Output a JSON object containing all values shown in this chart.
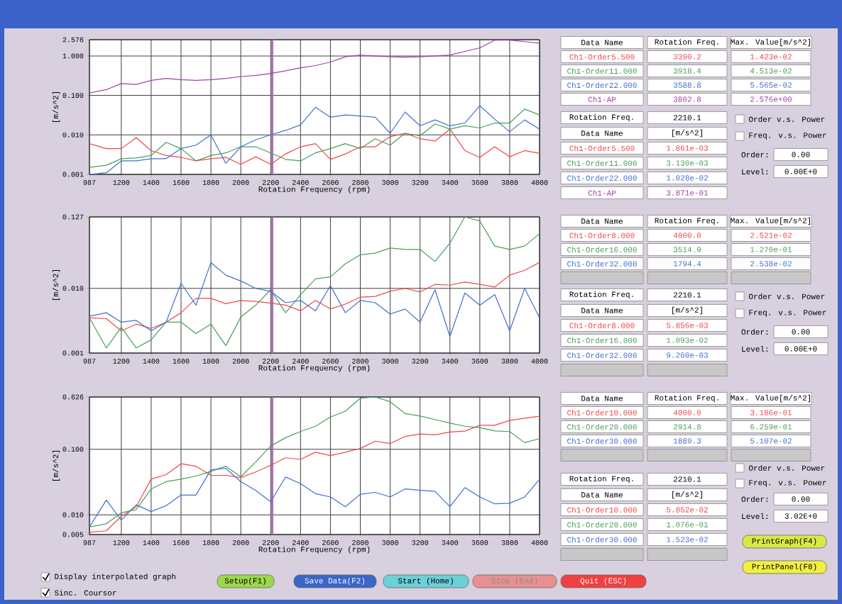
{
  "chart_data": [
    {
      "type": "line",
      "xlabel": "Rotation Frequency (rpm)",
      "ylabel": "[m/s^2]",
      "log": "y",
      "grid": true,
      "marker": "none",
      "x": [
        987,
        1100,
        1200,
        1300,
        1400,
        1500,
        1600,
        1700,
        1800,
        1900,
        2000,
        2100,
        2200,
        2300,
        2400,
        2500,
        2600,
        2700,
        2800,
        2900,
        3000,
        3100,
        3200,
        3300,
        3400,
        3500,
        3600,
        3700,
        3800,
        3900,
        4000
      ],
      "xlim": [
        987,
        4000
      ],
      "xticks": [
        987,
        1200,
        1400,
        1600,
        1800,
        2000,
        2200,
        2400,
        2600,
        2800,
        3000,
        3200,
        3400,
        3600,
        3800,
        4000
      ],
      "ylim": [
        0.001,
        2.576
      ],
      "yticks": [
        {
          "value": 0.001,
          "label": "0.001"
        },
        {
          "value": 0.01,
          "label": "0.010"
        },
        {
          "value": 0.1,
          "label": "0.100"
        },
        {
          "value": 1,
          "label": "1.000"
        },
        {
          "value": 2.576,
          "label": "2.576"
        }
      ],
      "ref_lines": [
        {
          "axis": "x",
          "value": 2210.1,
          "color": "#b070b8"
        }
      ],
      "series": [
        {
          "name": "Ch1-Order5.500",
          "color": "#f04848",
          "values": [
            0.006,
            0.0045,
            0.0045,
            0.0085,
            0.004,
            0.003,
            0.0027,
            0.0022,
            0.0025,
            0.0027,
            0.0018,
            0.0028,
            0.0018,
            0.0033,
            0.005,
            0.006,
            0.0024,
            0.0033,
            0.005,
            0.005,
            0.009,
            0.011,
            0.008,
            0.007,
            0.014,
            0.004,
            0.0027,
            0.005,
            0.0028,
            0.004,
            0.0034
          ]
        },
        {
          "name": "Ch1-Order11.000",
          "color": "#48a058",
          "values": [
            0.0015,
            0.0017,
            0.0025,
            0.0026,
            0.003,
            0.0065,
            0.0045,
            0.0022,
            0.003,
            0.0035,
            0.005,
            0.005,
            0.0035,
            0.0024,
            0.0022,
            0.0035,
            0.0045,
            0.006,
            0.0045,
            0.008,
            0.0055,
            0.011,
            0.0095,
            0.019,
            0.014,
            0.017,
            0.015,
            0.02,
            0.02,
            0.045,
            0.032
          ]
        },
        {
          "name": "Ch1-Order22.000",
          "color": "#4070d0",
          "values": [
            0.001,
            0.0011,
            0.0022,
            0.0022,
            0.0025,
            0.0025,
            0.0045,
            0.0055,
            0.01,
            0.0019,
            0.005,
            0.0075,
            0.01,
            0.013,
            0.018,
            0.05,
            0.028,
            0.032,
            0.03,
            0.028,
            0.011,
            0.038,
            0.017,
            0.024,
            0.017,
            0.02,
            0.055,
            0.025,
            0.012,
            0.024,
            0.014
          ]
        },
        {
          "name": "Ch1-AP",
          "color": "#a040a8",
          "values": [
            0.115,
            0.14,
            0.2,
            0.19,
            0.24,
            0.27,
            0.25,
            0.24,
            0.25,
            0.27,
            0.3,
            0.32,
            0.36,
            0.42,
            0.5,
            0.57,
            0.7,
            0.95,
            1.05,
            1.0,
            0.95,
            0.93,
            0.95,
            1.0,
            1.05,
            1.3,
            1.6,
            2.5,
            2.5,
            2.3,
            2.1
          ]
        }
      ]
    },
    {
      "type": "line",
      "xlabel": "Rotation Frequency (rpm)",
      "ylabel": "[m/s^2]",
      "log": "y",
      "grid": true,
      "marker": "none",
      "x": [
        987,
        1100,
        1200,
        1300,
        1400,
        1500,
        1600,
        1700,
        1800,
        1900,
        2000,
        2100,
        2200,
        2300,
        2400,
        2500,
        2600,
        2700,
        2800,
        2900,
        3000,
        3100,
        3200,
        3300,
        3400,
        3500,
        3600,
        3700,
        3800,
        3900,
        4000
      ],
      "xlim": [
        987,
        4000
      ],
      "xticks": [
        987,
        1200,
        1400,
        1600,
        1800,
        2000,
        2200,
        2400,
        2600,
        2800,
        3000,
        3200,
        3400,
        3600,
        3800,
        4000
      ],
      "ylim": [
        0.001,
        0.127
      ],
      "yticks": [
        {
          "value": 0.001,
          "label": "0.001"
        },
        {
          "value": 0.01,
          "label": "0.010"
        },
        {
          "value": 0.127,
          "label": "0.127"
        }
      ],
      "ref_lines": [
        {
          "axis": "x",
          "value": 2210.1,
          "color": "#b070b8"
        }
      ],
      "series": [
        {
          "name": "Ch1-Order8.000",
          "color": "#f04848",
          "values": [
            0.0035,
            0.0034,
            0.0022,
            0.0028,
            0.0024,
            0.003,
            0.0042,
            0.007,
            0.007,
            0.0058,
            0.0065,
            0.0063,
            0.0059,
            0.0055,
            0.0045,
            0.0065,
            0.0048,
            0.0057,
            0.0073,
            0.0075,
            0.009,
            0.01,
            0.0088,
            0.0115,
            0.0112,
            0.0125,
            0.0115,
            0.0105,
            0.016,
            0.019,
            0.0252
          ]
        },
        {
          "name": "Ch1-Order16.000",
          "color": "#48a058",
          "values": [
            0.0035,
            0.0012,
            0.0025,
            0.0012,
            0.0016,
            0.003,
            0.003,
            0.002,
            0.0028,
            0.0013,
            0.0036,
            0.0055,
            0.0095,
            0.0042,
            0.008,
            0.014,
            0.015,
            0.024,
            0.033,
            0.035,
            0.042,
            0.04,
            0.04,
            0.026,
            0.05,
            0.127,
            0.11,
            0.045,
            0.04,
            0.045,
            0.07
          ]
        },
        {
          "name": "Ch1-Order32.000",
          "color": "#4070d0",
          "values": [
            0.0037,
            0.0042,
            0.003,
            0.0032,
            0.0022,
            0.003,
            0.012,
            0.0055,
            0.025,
            0.016,
            0.013,
            0.01,
            0.009,
            0.006,
            0.0065,
            0.0045,
            0.011,
            0.0042,
            0.0065,
            0.006,
            0.004,
            0.0048,
            0.003,
            0.0095,
            0.0018,
            0.0085,
            0.0055,
            0.008,
            0.0022,
            0.01,
            0.0035
          ]
        }
      ]
    },
    {
      "type": "line",
      "xlabel": "Rotation Frequency (rpm)",
      "ylabel": "[m/s^2]",
      "log": "y",
      "grid": true,
      "marker": "none",
      "x": [
        987,
        1100,
        1200,
        1300,
        1400,
        1500,
        1600,
        1700,
        1800,
        1900,
        2000,
        2100,
        2200,
        2300,
        2400,
        2500,
        2600,
        2700,
        2800,
        2900,
        3000,
        3100,
        3200,
        3300,
        3400,
        3500,
        3600,
        3700,
        3800,
        3900,
        4000
      ],
      "xlim": [
        987,
        4000
      ],
      "xticks": [
        987,
        1200,
        1400,
        1600,
        1800,
        2000,
        2200,
        2400,
        2600,
        2800,
        3000,
        3200,
        3400,
        3600,
        3800,
        4000
      ],
      "ylim": [
        0.005,
        0.626
      ],
      "yticks": [
        {
          "value": 0.005,
          "label": "0.005"
        },
        {
          "value": 0.01,
          "label": "0.010"
        },
        {
          "value": 0.1,
          "label": "0.100"
        },
        {
          "value": 0.626,
          "label": "0.626"
        }
      ],
      "ref_lines": [
        {
          "axis": "x",
          "value": 2210.1,
          "color": "#b070b8"
        }
      ],
      "series": [
        {
          "name": "Ch1-Order10.000",
          "color": "#f04848",
          "values": [
            0.0054,
            0.0057,
            0.0095,
            0.0133,
            0.035,
            0.041,
            0.06,
            0.055,
            0.04,
            0.04,
            0.037,
            0.045,
            0.057,
            0.074,
            0.07,
            0.09,
            0.08,
            0.09,
            0.103,
            0.133,
            0.122,
            0.157,
            0.171,
            0.166,
            0.183,
            0.189,
            0.232,
            0.232,
            0.274,
            0.298,
            0.318
          ]
        },
        {
          "name": "Ch1-Order20.000",
          "color": "#48a058",
          "values": [
            0.0065,
            0.0073,
            0.0107,
            0.012,
            0.0248,
            0.032,
            0.035,
            0.039,
            0.046,
            0.055,
            0.038,
            0.064,
            0.112,
            0.15,
            0.186,
            0.224,
            0.31,
            0.38,
            0.6,
            0.626,
            0.53,
            0.35,
            0.32,
            0.284,
            0.25,
            0.224,
            0.213,
            0.19,
            0.186,
            0.126,
            0.145
          ]
        },
        {
          "name": "Ch1-Order30.000",
          "color": "#4070d0",
          "values": [
            0.0065,
            0.0168,
            0.0083,
            0.0142,
            0.0112,
            0.0138,
            0.02,
            0.02,
            0.0486,
            0.051,
            0.032,
            0.0236,
            0.0158,
            0.0377,
            0.0298,
            0.021,
            0.0187,
            0.0133,
            0.0206,
            0.022,
            0.0187,
            0.0248,
            0.0236,
            0.0228,
            0.0133,
            0.026,
            0.0187,
            0.0147,
            0.015,
            0.0187,
            0.0347
          ]
        }
      ]
    },
    {
      "type": "other",
      "annotations": [
        "Data Name",
        "Rotation Freq.",
        "Max. Value[m/s^2]",
        "3390.2",
        "1.423e-02",
        "3918.4",
        "4.513e-02",
        "3588.8",
        "5.565e-02",
        "3802.8",
        "2.576e+00",
        "Rotation Freq.",
        "2210.1",
        "Data Name",
        "[m/s^2]",
        "1.861e-03",
        "3.130e-03",
        "1.028e-02",
        "3.871e-01",
        "Order v.s. Power",
        "Freq. v.s. Power",
        "Order:",
        "0.00",
        "Level:",
        "0.00E+0"
      ]
    },
    {
      "type": "other",
      "annotations": [
        "Data Name",
        "Rotation Freq.",
        "Max. Value[m/s^2]",
        "4000.0",
        "2.521e-02",
        "3514.9",
        "1.270e-01",
        "1794.4",
        "2.538e-02",
        "Rotation Freq.",
        "2210.1",
        "Data Name",
        "[m/s^2]",
        "5.856e-03",
        "1.093e-02",
        "9.260e-03",
        "Order v.s. Power",
        "Freq. v.s. Power",
        "Order:",
        "0.00",
        "Level:",
        "0.00E+0"
      ]
    },
    {
      "type": "other",
      "annotations": [
        "Data Name",
        "Rotation Freq.",
        "Max. Value[m/s^2]",
        "4000.0",
        "3.186e-01",
        "2914.8",
        "6.259e-01",
        "1889.3",
        "5.107e-02",
        "Rotation Freq.",
        "2210.1",
        "Data Name",
        "[m/s^2]",
        "5.852e-02",
        "1.076e-01",
        "1.523e-02",
        "Order v.s. Power",
        "Freq. v.s. Power",
        "Order:",
        "0.00",
        "Level:",
        "3.02E+0"
      ]
    },
    {
      "type": "other",
      "annotations": [
        "Display interpolated graph",
        "Sinc. Coursor",
        "Setup(F1)",
        "Save Data(F2)",
        "Start (Home)",
        "Stop (End)",
        "Quit (ESC)",
        "PrintGraph(F4)",
        "PrintPanel(F8)"
      ]
    }
  ]
}
